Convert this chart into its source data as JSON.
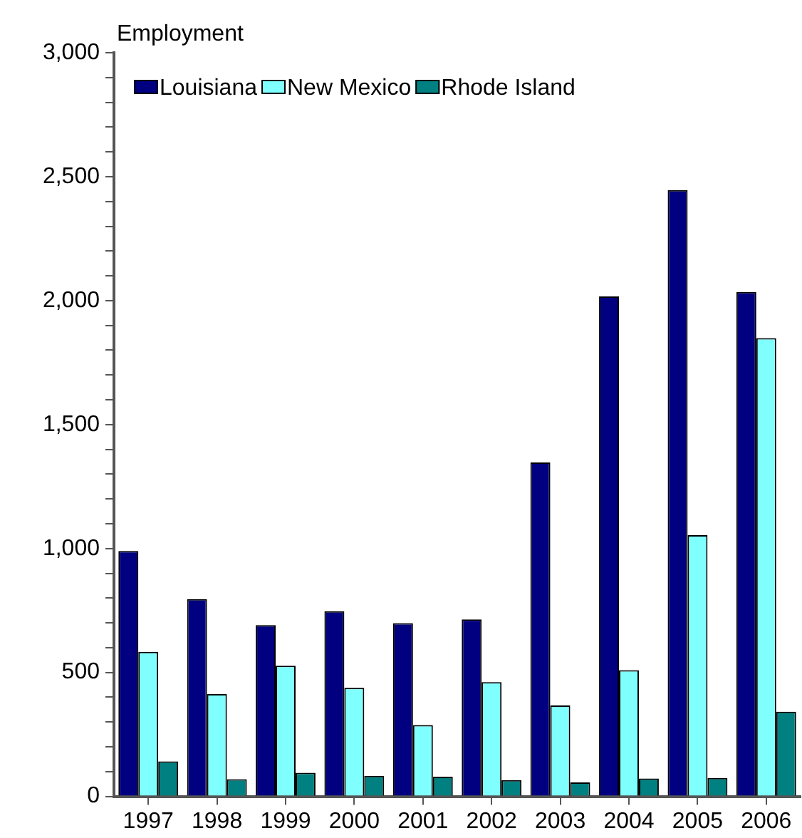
{
  "chart_data": {
    "type": "bar",
    "ylabel": "Employment",
    "categories": [
      "1997",
      "1998",
      "1999",
      "2000",
      "2001",
      "2002",
      "2003",
      "2004",
      "2005",
      "2006"
    ],
    "series": [
      {
        "name": "Louisiana",
        "color": "#000080",
        "values": [
          990,
          796,
          691,
          747,
          699,
          714,
          1347,
          2017,
          2446,
          2035
        ]
      },
      {
        "name": "New Mexico",
        "color": "#80ffff",
        "values": [
          583,
          413,
          527,
          438,
          288,
          461,
          367,
          509,
          1054,
          1849
        ]
      },
      {
        "name": "Rhode Island",
        "color": "#008080",
        "values": [
          141,
          69,
          95,
          83,
          79,
          66,
          56,
          72,
          74,
          342
        ]
      }
    ],
    "ylim": [
      0,
      3000
    ],
    "yticks": [
      0,
      {
        "value": 100,
        "label": null
      },
      {
        "value": 200,
        "label": null
      },
      {
        "value": 300,
        "label": null
      },
      {
        "value": 400,
        "label": null
      },
      {
        "value": 500,
        "label": "500"
      },
      {
        "value": 600,
        "label": null
      },
      {
        "value": 700,
        "label": null
      },
      {
        "value": 800,
        "label": null
      },
      {
        "value": 900,
        "label": null
      },
      {
        "value": 1000,
        "label": "1,000"
      },
      {
        "value": 1100,
        "label": null
      },
      {
        "value": 1200,
        "label": null
      },
      {
        "value": 1300,
        "label": null
      },
      {
        "value": 1400,
        "label": null
      },
      {
        "value": 1500,
        "label": "1,500"
      },
      {
        "value": 1600,
        "label": null
      },
      {
        "value": 1700,
        "label": null
      },
      {
        "value": 1800,
        "label": null
      },
      {
        "value": 1900,
        "label": null
      },
      {
        "value": 2000,
        "label": "2,000"
      },
      {
        "value": 2100,
        "label": null
      },
      {
        "value": 2200,
        "label": null
      },
      {
        "value": 2300,
        "label": null
      },
      {
        "value": 2400,
        "label": null
      },
      {
        "value": 2500,
        "label": "2,500"
      },
      {
        "value": 2600,
        "label": null
      },
      {
        "value": 2700,
        "label": null
      },
      {
        "value": 2800,
        "label": null
      },
      {
        "value": 2900,
        "label": null
      },
      {
        "value": 3000,
        "label": "3,000"
      }
    ],
    "grid": false,
    "legend": "top left"
  }
}
